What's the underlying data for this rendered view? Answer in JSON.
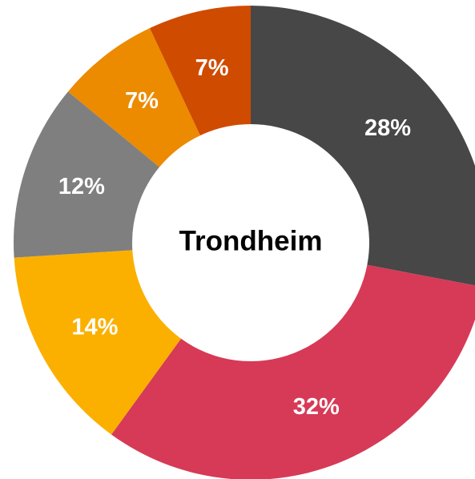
{
  "chart_data": {
    "type": "pie",
    "center_label": "Trondheim",
    "categories": [
      null,
      null,
      null,
      null,
      null,
      null
    ],
    "values": [
      28,
      32,
      14,
      12,
      7,
      7
    ],
    "value_labels": [
      "28%",
      "32%",
      "14%",
      "12%",
      "7%",
      "7%"
    ],
    "colors": [
      "#474747",
      "#d63a56",
      "#fbb000",
      "#7f7f7f",
      "#ec8a00",
      "#cf4b00"
    ]
  }
}
